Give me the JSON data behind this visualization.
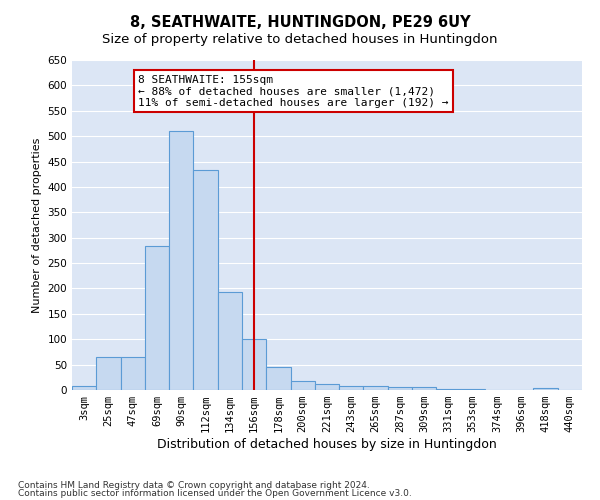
{
  "title": "8, SEATHWAITE, HUNTINGDON, PE29 6UY",
  "subtitle": "Size of property relative to detached houses in Huntingdon",
  "xlabel": "Distribution of detached houses by size in Huntingdon",
  "ylabel": "Number of detached properties",
  "categories": [
    "3sqm",
    "25sqm",
    "47sqm",
    "69sqm",
    "90sqm",
    "112sqm",
    "134sqm",
    "156sqm",
    "178sqm",
    "200sqm",
    "221sqm",
    "243sqm",
    "265sqm",
    "287sqm",
    "309sqm",
    "331sqm",
    "353sqm",
    "374sqm",
    "396sqm",
    "418sqm",
    "440sqm"
  ],
  "values": [
    8,
    65,
    65,
    283,
    511,
    433,
    193,
    100,
    46,
    18,
    11,
    8,
    8,
    5,
    5,
    2,
    2,
    0,
    0,
    3,
    0
  ],
  "bar_color": "#c6d9f0",
  "bar_edge_color": "#5b9bd5",
  "ylim": [
    0,
    650
  ],
  "yticks": [
    0,
    50,
    100,
    150,
    200,
    250,
    300,
    350,
    400,
    450,
    500,
    550,
    600,
    650
  ],
  "annotation_text": "8 SEATHWAITE: 155sqm\n← 88% of detached houses are smaller (1,472)\n11% of semi-detached houses are larger (192) →",
  "footer_line1": "Contains HM Land Registry data © Crown copyright and database right 2024.",
  "footer_line2": "Contains public sector information licensed under the Open Government Licence v3.0.",
  "background_color": "#ffffff",
  "plot_bg_color": "#dce6f5",
  "grid_color": "#ffffff",
  "vline_color": "#cc0000",
  "annotation_box_color": "#ffffff",
  "annotation_box_edge": "#cc0000",
  "title_fontsize": 10.5,
  "subtitle_fontsize": 9.5,
  "ylabel_fontsize": 8,
  "xlabel_fontsize": 9,
  "tick_fontsize": 7.5,
  "annotation_fontsize": 8,
  "footer_fontsize": 6.5
}
